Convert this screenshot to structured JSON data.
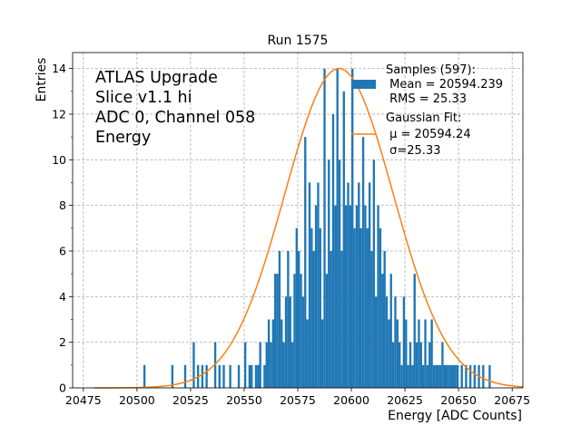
{
  "chart_data": {
    "type": "bar",
    "title": "Run 1575",
    "xlabel": "Energy [ADC Counts]",
    "ylabel": "Entries",
    "xlim": [
      20470,
      20680
    ],
    "ylim": [
      0,
      14.7
    ],
    "x_ticks": [
      20475,
      20500,
      20525,
      20550,
      20575,
      20600,
      20625,
      20650,
      20675
    ],
    "y_ticks": [
      0,
      2,
      4,
      6,
      8,
      10,
      12,
      14
    ],
    "grid": true,
    "annotation_lines": [
      "ATLAS Upgrade",
      "Slice v1.1 hi",
      "ADC 0, Channel 058",
      "Energy"
    ],
    "legend": {
      "placement": "top-right",
      "hist_label": [
        "Samples (597):",
        " Mean = 20594.239",
        " RMS = 25.33"
      ],
      "fit_label": [
        "Gaussian Fit:",
        " μ = 20594.24",
        " σ=25.33"
      ]
    },
    "colors": {
      "hist": "#1f77b4",
      "fit": "#ff7f0e",
      "grid": "#b0b0b0"
    },
    "histogram": {
      "series_name": "Samples (597)",
      "bin_width": 1,
      "bins": [
        [
          20503,
          1
        ],
        [
          20516,
          1
        ],
        [
          20522,
          1
        ],
        [
          20526,
          2
        ],
        [
          20528,
          1
        ],
        [
          20530,
          1
        ],
        [
          20532,
          1
        ],
        [
          20536,
          2
        ],
        [
          20538,
          1
        ],
        [
          20540,
          1
        ],
        [
          20543,
          1
        ],
        [
          20547,
          1
        ],
        [
          20550,
          2
        ],
        [
          20552,
          1
        ],
        [
          20553,
          1
        ],
        [
          20555,
          1
        ],
        [
          20556,
          1
        ],
        [
          20557,
          2
        ],
        [
          20559,
          1
        ],
        [
          20560,
          2
        ],
        [
          20561,
          3
        ],
        [
          20562,
          2
        ],
        [
          20563,
          3
        ],
        [
          20564,
          5
        ],
        [
          20565,
          5
        ],
        [
          20566,
          6
        ],
        [
          20567,
          3
        ],
        [
          20568,
          2
        ],
        [
          20569,
          4
        ],
        [
          20570,
          6
        ],
        [
          20571,
          4
        ],
        [
          20572,
          2
        ],
        [
          20573,
          5
        ],
        [
          20574,
          7
        ],
        [
          20575,
          6
        ],
        [
          20576,
          5
        ],
        [
          20577,
          4
        ],
        [
          20578,
          11
        ],
        [
          20579,
          3
        ],
        [
          20580,
          9
        ],
        [
          20581,
          7
        ],
        [
          20582,
          6
        ],
        [
          20583,
          8
        ],
        [
          20584,
          9
        ],
        [
          20585,
          7
        ],
        [
          20586,
          3
        ],
        [
          20587,
          14
        ],
        [
          20588,
          5
        ],
        [
          20589,
          10
        ],
        [
          20590,
          6
        ],
        [
          20591,
          12
        ],
        [
          20592,
          8
        ],
        [
          20593,
          14
        ],
        [
          20594,
          10
        ],
        [
          20595,
          6
        ],
        [
          20596,
          13
        ],
        [
          20597,
          8
        ],
        [
          20598,
          9
        ],
        [
          20599,
          8
        ],
        [
          20600,
          14
        ],
        [
          20601,
          7
        ],
        [
          20602,
          8
        ],
        [
          20603,
          9
        ],
        [
          20604,
          7
        ],
        [
          20605,
          11
        ],
        [
          20606,
          8
        ],
        [
          20607,
          7
        ],
        [
          20608,
          9
        ],
        [
          20609,
          6
        ],
        [
          20610,
          10
        ],
        [
          20611,
          4
        ],
        [
          20612,
          8
        ],
        [
          20613,
          7
        ],
        [
          20614,
          5
        ],
        [
          20615,
          6
        ],
        [
          20616,
          4
        ],
        [
          20617,
          3
        ],
        [
          20618,
          5
        ],
        [
          20619,
          2
        ],
        [
          20620,
          4
        ],
        [
          20621,
          3
        ],
        [
          20622,
          2
        ],
        [
          20623,
          1
        ],
        [
          20624,
          4
        ],
        [
          20625,
          3
        ],
        [
          20626,
          1
        ],
        [
          20627,
          2
        ],
        [
          20628,
          1
        ],
        [
          20629,
          5
        ],
        [
          20630,
          2
        ],
        [
          20631,
          3
        ],
        [
          20632,
          2
        ],
        [
          20633,
          1
        ],
        [
          20634,
          3
        ],
        [
          20635,
          1
        ],
        [
          20636,
          2
        ],
        [
          20637,
          3
        ],
        [
          20638,
          1
        ],
        [
          20639,
          1
        ],
        [
          20640,
          1
        ],
        [
          20641,
          1
        ],
        [
          20642,
          2
        ],
        [
          20643,
          1
        ],
        [
          20644,
          1
        ],
        [
          20645,
          1
        ],
        [
          20646,
          1
        ],
        [
          20647,
          1
        ],
        [
          20648,
          1
        ],
        [
          20649,
          1
        ],
        [
          20651,
          1
        ],
        [
          20653,
          1
        ],
        [
          20655,
          1
        ],
        [
          20657,
          1
        ],
        [
          20659,
          1
        ],
        [
          20661,
          1
        ],
        [
          20664,
          1
        ]
      ]
    },
    "fit": {
      "type": "gaussian",
      "name": "Gaussian Fit",
      "mu": 20594.24,
      "sigma": 25.33,
      "amplitude": 14.0,
      "x_range": [
        20480,
        20680
      ]
    }
  }
}
